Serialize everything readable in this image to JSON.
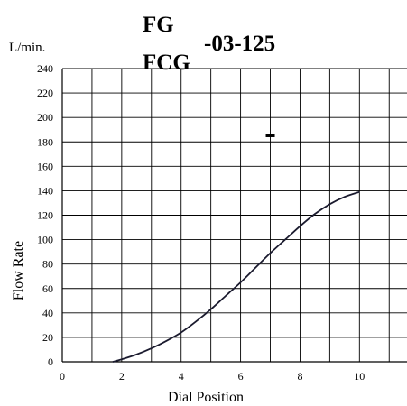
{
  "chart_data": {
    "type": "line",
    "title_lines": [
      "FG",
      "FCG"
    ],
    "title_suffix": "-03-125",
    "unit_label": "L/min.",
    "xlabel": "Dial Position",
    "ylabel": "Flow Rate",
    "xlim": [
      0,
      11.6
    ],
    "ylim": [
      0,
      240
    ],
    "x_ticks": [
      0,
      2,
      4,
      6,
      8,
      10
    ],
    "y_ticks": [
      0,
      20,
      40,
      60,
      80,
      100,
      120,
      140,
      160,
      180,
      200,
      220,
      240
    ],
    "grid_x": [
      0,
      1,
      2,
      3,
      4,
      5,
      6,
      7,
      8,
      9,
      10,
      11
    ],
    "grid_y": [
      0,
      20,
      40,
      60,
      80,
      100,
      120,
      140,
      160,
      180,
      200,
      220,
      240
    ],
    "grid": true,
    "series": [
      {
        "color": "#1a1a2e",
        "x": [
          1.7,
          2.0,
          2.5,
          3.0,
          3.5,
          4.0,
          4.5,
          5.0,
          5.5,
          6.0,
          6.5,
          7.0,
          7.5,
          8.0,
          8.5,
          9.0,
          9.5,
          10.0
        ],
        "y": [
          0,
          2,
          6,
          11,
          17,
          24,
          33,
          43,
          54,
          65,
          77,
          89,
          100,
          111,
          121,
          129,
          135,
          139
        ]
      }
    ],
    "marker_dash": {
      "x": 7.0,
      "y": 185
    }
  }
}
